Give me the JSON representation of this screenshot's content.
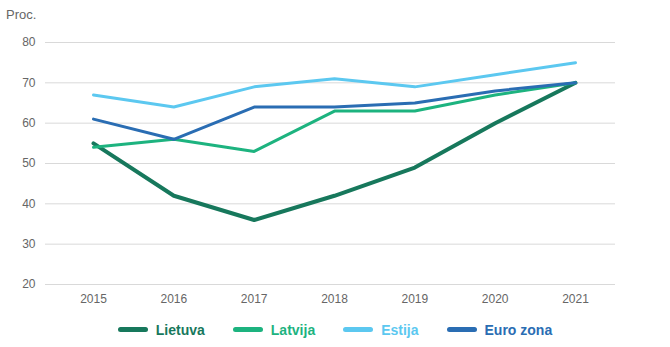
{
  "chart_data": {
    "type": "line",
    "y_label": "Proc.",
    "x": [
      2015,
      2016,
      2017,
      2018,
      2019,
      2020,
      2021
    ],
    "xlim": [
      2015,
      2021
    ],
    "xticks": [
      2015,
      2016,
      2017,
      2018,
      2019,
      2020,
      2021
    ],
    "ylim": [
      20,
      80
    ],
    "yticks": [
      20,
      30,
      40,
      50,
      60,
      70,
      80
    ],
    "grid": true,
    "legend": "bottom",
    "series": [
      {
        "name": "Lietuva",
        "color": "#17785c",
        "values": [
          55,
          42,
          36,
          42,
          49,
          60,
          70
        ]
      },
      {
        "name": "Latvija",
        "color": "#1db37f",
        "values": [
          54,
          56,
          53,
          63,
          63,
          67,
          70
        ]
      },
      {
        "name": "Estija",
        "color": "#5cc8f0",
        "values": [
          67,
          64,
          69,
          71,
          69,
          72,
          75
        ]
      },
      {
        "name": "Euro zona",
        "color": "#2a6db3",
        "values": [
          61,
          56,
          64,
          64,
          65,
          68,
          70
        ]
      }
    ]
  }
}
